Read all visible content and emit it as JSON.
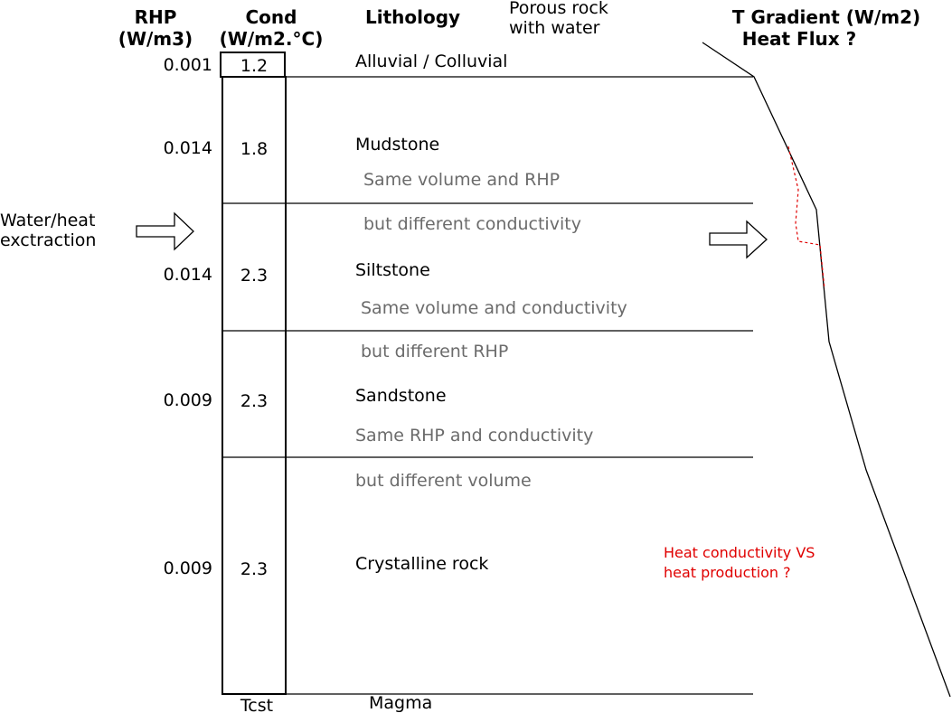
{
  "headers": {
    "rhp": [
      "RHP",
      "(W/m3)"
    ],
    "cond": [
      "Cond",
      "(W/m2.°C)"
    ],
    "lithology": "Lithology",
    "porous": [
      "Porous rock",
      "with water"
    ],
    "gradient": [
      "T Gradient (W/m2)",
      "Heat Flux ?"
    ]
  },
  "layers": [
    {
      "rhp": "0.001",
      "cond": "1.2",
      "name": "Alluvial / Colluvial"
    },
    {
      "rhp": "0.014",
      "cond": "1.8",
      "name": "Mudstone"
    },
    {
      "rhp": "0.014",
      "cond": "2.3",
      "name": "Siltstone"
    },
    {
      "rhp": "0.009",
      "cond": "2.3",
      "name": "Sandstone"
    },
    {
      "rhp": "0.009",
      "cond": "2.3",
      "name": "Crystalline rock"
    }
  ],
  "bottom": {
    "tcst": "Tcst",
    "magma": "Magma"
  },
  "notes": [
    "Same volume and RHP",
    "but different conductivity",
    "Same volume and conductivity",
    "but different RHP",
    "Same RHP and conductivity",
    "but different volume"
  ],
  "water": [
    "Water/heat",
    "exctraction"
  ],
  "question": [
    "Heat conductivity VS",
    "heat production ?"
  ],
  "colors": {
    "question": "#e00000",
    "notes": "#6b6b6b",
    "dashed_profile": "#e00000"
  }
}
